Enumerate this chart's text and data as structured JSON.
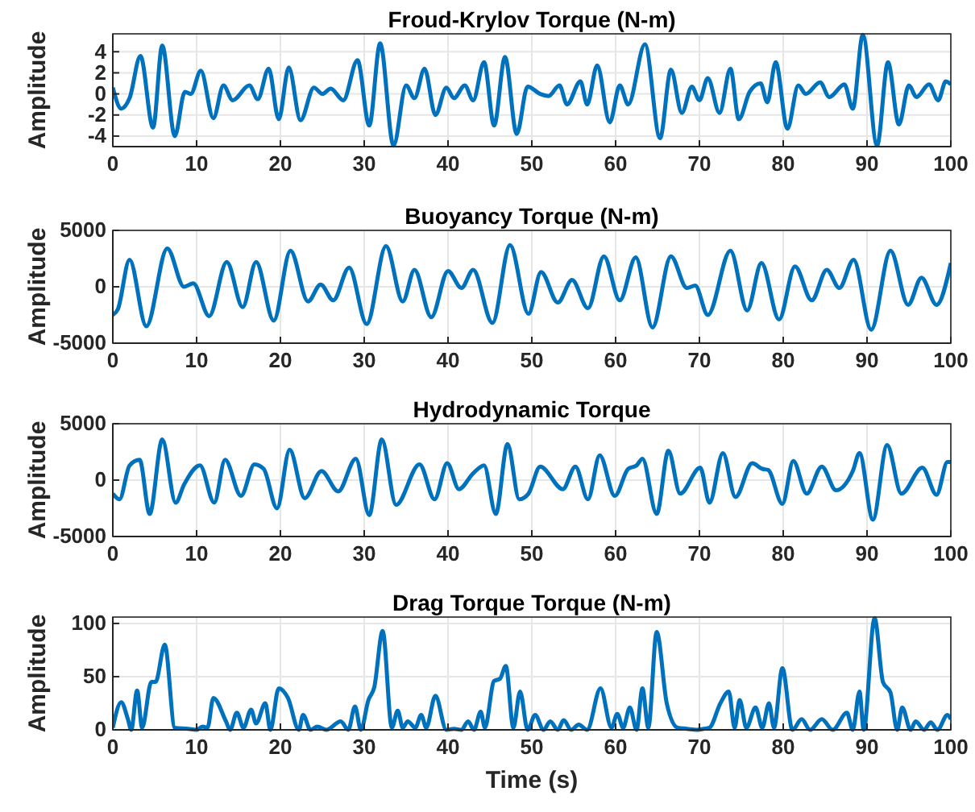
{
  "chart_data": [
    {
      "type": "line",
      "title": "Froud-Krylov Torque (N-m)",
      "ylabel": "Amplitude",
      "color": "#0072bd",
      "xlim": [
        0,
        100
      ],
      "xticks": [
        0,
        10,
        20,
        30,
        40,
        50,
        60,
        70,
        80,
        90,
        100
      ],
      "ylim": [
        -5,
        5.7
      ],
      "yticks": [
        -4,
        -2,
        0,
        2,
        4
      ],
      "grid": true,
      "x": [
        0,
        1,
        2,
        3.3,
        4.8,
        5.9,
        7.4,
        8.6,
        9.3,
        10.5,
        12,
        13.2,
        14.3,
        16.3,
        17.3,
        18.6,
        19.8,
        21,
        22.4,
        24,
        25,
        26,
        27.5,
        29.2,
        30.6,
        31.9,
        33.5,
        35,
        36,
        37.2,
        38.5,
        39.8,
        40.7,
        42,
        43,
        44.3,
        45.5,
        46.8,
        48.2,
        49.5,
        51,
        52,
        53.3,
        54.2,
        55.8,
        56.6,
        57.8,
        59.3,
        60.5,
        61.5,
        63.5,
        65.3,
        66.6,
        67.9,
        69.1,
        70,
        71,
        72.4,
        73.7,
        74.7,
        76,
        77.3,
        78.1,
        79.1,
        80.5,
        81.8,
        82.7,
        84.4,
        85.5,
        87.3,
        88.3,
        89.5,
        91.2,
        92.5,
        93.8,
        95,
        95.9,
        97.4,
        98.5,
        99.4,
        100
      ],
      "values": [
        0.6,
        -1.4,
        -0.4,
        3.6,
        -3.2,
        4.6,
        -4,
        0.2,
        0,
        2.2,
        -2.3,
        0.8,
        -0.6,
        0.8,
        -0.5,
        2.4,
        -2.4,
        2.5,
        -2.5,
        0.6,
        0,
        0.5,
        -0.6,
        3.2,
        -3,
        4.8,
        -4.9,
        0.8,
        -0.4,
        2.4,
        -2,
        0.6,
        -0.4,
        0.8,
        -0.6,
        3,
        -3,
        3.5,
        -3.8,
        0.7,
        0,
        -0.2,
        0.8,
        -1,
        1.2,
        -1,
        2.7,
        -2.7,
        0.8,
        -1,
        4.7,
        -4.2,
        2.3,
        -1.8,
        0.7,
        -0.6,
        1.5,
        -1.8,
        2.4,
        -2.4,
        0.2,
        1,
        -0.8,
        3,
        -3.3,
        0.8,
        0,
        1.1,
        -0.3,
        0.9,
        -1.4,
        5.6,
        -4.9,
        3,
        -2.9,
        0.8,
        -0.3,
        0.9,
        -0.6,
        1.2,
        0.9
      ]
    },
    {
      "type": "line",
      "title": "Buoyancy Torque (N-m)",
      "ylabel": "Amplitude",
      "color": "#0072bd",
      "xlim": [
        0,
        100
      ],
      "xticks": [
        0,
        10,
        20,
        30,
        40,
        50,
        60,
        70,
        80,
        90,
        100
      ],
      "ylim": [
        -5000,
        5000
      ],
      "yticks": [
        -5000,
        0,
        5000
      ],
      "grid": true,
      "x": [
        0,
        0.6,
        2,
        4,
        6.5,
        8.5,
        9.6,
        11.5,
        13.6,
        15.5,
        17.1,
        19.2,
        21.2,
        23.3,
        24.8,
        26.3,
        28.2,
        30.3,
        32.6,
        34.6,
        36,
        38,
        40,
        41.6,
        43,
        45.3,
        47.4,
        49.6,
        51.1,
        53.1,
        54.8,
        56.7,
        58.6,
        60.5,
        62.4,
        64.4,
        66.6,
        68.5,
        69.5,
        71,
        73.7,
        75.7,
        77.4,
        79.5,
        81.4,
        83.4,
        85.2,
        86.7,
        88.4,
        90.5,
        92.8,
        94.9,
        96.5,
        98.3,
        100
      ],
      "values": [
        -2500,
        -2000,
        2400,
        -3500,
        3400,
        0,
        300,
        -2600,
        2200,
        -1800,
        2200,
        -3000,
        3200,
        -1300,
        200,
        -1200,
        1700,
        -3300,
        3600,
        -1300,
        1500,
        -2700,
        1400,
        -100,
        1500,
        -3200,
        3700,
        -2400,
        1300,
        -1400,
        600,
        -1900,
        2700,
        -1200,
        2600,
        -3600,
        2700,
        -100,
        100,
        -2500,
        3200,
        -2100,
        2100,
        -2900,
        1800,
        -1200,
        1500,
        -100,
        2400,
        -3800,
        3200,
        -1600,
        800,
        -1600,
        2100
      ]
    },
    {
      "type": "line",
      "title": "Hydrodynamic Torque",
      "ylabel": "Amplitude",
      "color": "#0072bd",
      "xlim": [
        0,
        100
      ],
      "xticks": [
        0,
        10,
        20,
        30,
        40,
        50,
        60,
        70,
        80,
        90,
        100
      ],
      "ylim": [
        -5000,
        5000
      ],
      "yticks": [
        -5000,
        0,
        5000
      ],
      "grid": true,
      "x": [
        0,
        0.8,
        2,
        3.2,
        4.4,
        5.9,
        7.5,
        8.5,
        10.4,
        12.1,
        13.4,
        15.3,
        16.9,
        18,
        19.6,
        21.1,
        22.9,
        24.9,
        26.9,
        29,
        30.6,
        32.1,
        33.8,
        36.6,
        38.4,
        39.9,
        41.3,
        43,
        44.3,
        45.7,
        47.1,
        48.5,
        49.6,
        51,
        53.7,
        55.2,
        56.7,
        58.1,
        59.9,
        61.5,
        62.5,
        63.2,
        64.9,
        66.3,
        67.7,
        70.1,
        71.2,
        72.8,
        74.3,
        76.3,
        77.5,
        78.2,
        79.9,
        81.2,
        82.8,
        84.6,
        86.3,
        88.3,
        89.1,
        90.7,
        92.4,
        94.1,
        96.6,
        98.3,
        99.6,
        100
      ],
      "values": [
        -1200,
        -1700,
        1300,
        1800,
        -3000,
        3600,
        -2000,
        -400,
        1300,
        -2000,
        1800,
        -1400,
        1400,
        1000,
        -2500,
        2700,
        -1600,
        800,
        -1000,
        1900,
        -3100,
        3600,
        -2200,
        1400,
        -1700,
        1500,
        -800,
        600,
        1300,
        -3000,
        3200,
        -1700,
        -1200,
        1200,
        -800,
        1200,
        -1700,
        2200,
        -1400,
        1000,
        1300,
        1900,
        -3000,
        2600,
        -1200,
        1100,
        -2000,
        2400,
        -1500,
        1500,
        1000,
        900,
        -2100,
        1700,
        -1200,
        1200,
        -900,
        800,
        2400,
        -3500,
        3100,
        -1200,
        1100,
        -1300,
        1600,
        1600
      ]
    },
    {
      "type": "line",
      "title": "Drag Torque Torque (N-m)",
      "xlabel": "Time (s)",
      "ylabel": "Amplitude",
      "color": "#0072bd",
      "xlim": [
        0,
        100
      ],
      "xticks": [
        0,
        10,
        20,
        30,
        40,
        50,
        60,
        70,
        80,
        90,
        100
      ],
      "ylim": [
        0,
        106
      ],
      "yticks": [
        0,
        50,
        100
      ],
      "grid": true,
      "x": [
        0,
        1,
        1.8,
        2.2,
        2.9,
        3.5,
        4.6,
        5.1,
        6.2,
        7.4,
        9,
        10,
        10.7,
        11.3,
        12,
        13.5,
        14,
        14.8,
        15.6,
        16.5,
        17.1,
        18.2,
        18.8,
        19.8,
        20.9,
        22.2,
        22.7,
        23.6,
        24.4,
        25.5,
        27.2,
        28.1,
        28.9,
        29.6,
        30.5,
        31.2,
        32.2,
        33.3,
        34,
        34.6,
        35.2,
        36.1,
        36.8,
        37.4,
        38.5,
        39.8,
        40.7,
        41.6,
        42.4,
        43.1,
        43.9,
        44.4,
        45.5,
        46.2,
        46.9,
        47.8,
        48.6,
        49.5,
        50.4,
        51.4,
        52.2,
        53.1,
        53.8,
        54.7,
        55.6,
        56.6,
        58.2,
        59.5,
        60.2,
        60.9,
        61.7,
        62.5,
        63.2,
        63.9,
        64.9,
        66.1,
        67.4,
        68.5,
        69.7,
        70.5,
        71.2,
        72.5,
        73.5,
        74.2,
        74.8,
        75.6,
        76.7,
        77.5,
        78.3,
        78.9,
        79.9,
        81.1,
        82.2,
        83.2,
        84.6,
        85.9,
        87.6,
        88.3,
        89.1,
        89.6,
        90.9,
        91.9,
        92.8,
        93.6,
        94.2,
        95.2,
        95.8,
        96.8,
        97.6,
        98.4,
        99.6,
        100
      ],
      "values": [
        2,
        26,
        10,
        0,
        37,
        2,
        45,
        45,
        80,
        2,
        1,
        0,
        3,
        2,
        30,
        8,
        0,
        16,
        2,
        19,
        6,
        25,
        0,
        39,
        30,
        0,
        14,
        0,
        3,
        0,
        8,
        0,
        22,
        0,
        28,
        40,
        93,
        2,
        18,
        2,
        8,
        2,
        14,
        2,
        32,
        0,
        1,
        0,
        8,
        0,
        17,
        2,
        46,
        48,
        60,
        2,
        36,
        0,
        14,
        0,
        8,
        0,
        9,
        0,
        5,
        0,
        39,
        2,
        15,
        2,
        21,
        0,
        39,
        2,
        92,
        25,
        2,
        1,
        0,
        1,
        2,
        25,
        36,
        2,
        28,
        2,
        21,
        2,
        25,
        2,
        58,
        0,
        10,
        0,
        10,
        0,
        16,
        0,
        36,
        0,
        105,
        45,
        35,
        0,
        21,
        0,
        8,
        0,
        7,
        0,
        14,
        10
      ]
    }
  ]
}
